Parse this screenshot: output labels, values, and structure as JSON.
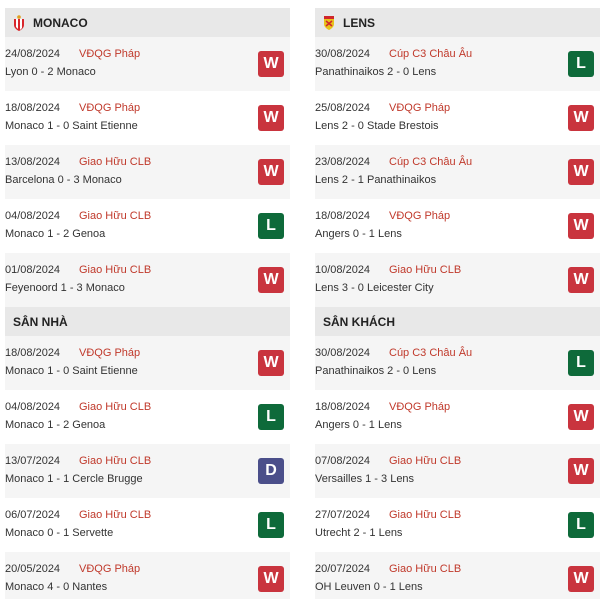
{
  "colors": {
    "W": "#c9343e",
    "L": "#0e6a3a",
    "D": "#4b4f8a",
    "competition": "#c0392b"
  },
  "left": [
    {
      "title": "MONACO",
      "icon": "monaco-crest-icon",
      "matches": [
        {
          "date": "24/08/2024",
          "comp": "VĐQG Pháp",
          "match": "Lyon 0 - 2 Monaco",
          "result": "W"
        },
        {
          "date": "18/08/2024",
          "comp": "VĐQG Pháp",
          "match": "Monaco 1 - 0 Saint Etienne",
          "result": "W"
        },
        {
          "date": "13/08/2024",
          "comp": "Giao Hữu CLB",
          "match": "Barcelona 0 - 3 Monaco",
          "result": "W"
        },
        {
          "date": "04/08/2024",
          "comp": "Giao Hữu CLB",
          "match": "Monaco 1 - 2 Genoa",
          "result": "L"
        },
        {
          "date": "01/08/2024",
          "comp": "Giao Hữu CLB",
          "match": "Feyenoord 1 - 3 Monaco",
          "result": "W"
        }
      ]
    },
    {
      "title": "SÂN NHÀ",
      "matches": [
        {
          "date": "18/08/2024",
          "comp": "VĐQG Pháp",
          "match": "Monaco 1 - 0 Saint Etienne",
          "result": "W"
        },
        {
          "date": "04/08/2024",
          "comp": "Giao Hữu CLB",
          "match": "Monaco 1 - 2 Genoa",
          "result": "L"
        },
        {
          "date": "13/07/2024",
          "comp": "Giao Hữu CLB",
          "match": "Monaco 1 - 1 Cercle Brugge",
          "result": "D"
        },
        {
          "date": "06/07/2024",
          "comp": "Giao Hữu CLB",
          "match": "Monaco 0 - 1 Servette",
          "result": "L"
        },
        {
          "date": "20/05/2024",
          "comp": "VĐQG Pháp",
          "match": "Monaco 4 - 0 Nantes",
          "result": "W"
        }
      ]
    }
  ],
  "right": [
    {
      "title": "LENS",
      "icon": "lens-crest-icon",
      "matches": [
        {
          "date": "30/08/2024",
          "comp": "Cúp C3 Châu Âu",
          "match": "Panathinaikos 2 - 0 Lens",
          "result": "L"
        },
        {
          "date": "25/08/2024",
          "comp": "VĐQG Pháp",
          "match": "Lens 2 - 0 Stade Brestois",
          "result": "W"
        },
        {
          "date": "23/08/2024",
          "comp": "Cúp C3 Châu Âu",
          "match": "Lens 2 - 1 Panathinaikos",
          "result": "W"
        },
        {
          "date": "18/08/2024",
          "comp": "VĐQG Pháp",
          "match": "Angers 0 - 1 Lens",
          "result": "W"
        },
        {
          "date": "10/08/2024",
          "comp": "Giao Hữu CLB",
          "match": "Lens 3 - 0 Leicester City",
          "result": "W"
        }
      ]
    },
    {
      "title": "SÂN KHÁCH",
      "matches": [
        {
          "date": "30/08/2024",
          "comp": "Cúp C3 Châu Âu",
          "match": "Panathinaikos 2 - 0 Lens",
          "result": "L"
        },
        {
          "date": "18/08/2024",
          "comp": "VĐQG Pháp",
          "match": "Angers 0 - 1 Lens",
          "result": "W"
        },
        {
          "date": "07/08/2024",
          "comp": "Giao Hữu CLB",
          "match": "Versailles 1 - 3 Lens",
          "result": "W"
        },
        {
          "date": "27/07/2024",
          "comp": "Giao Hữu CLB",
          "match": "Utrecht 2 - 1 Lens",
          "result": "L"
        },
        {
          "date": "20/07/2024",
          "comp": "Giao Hữu CLB",
          "match": "OH Leuven 0 - 1 Lens",
          "result": "W"
        }
      ]
    }
  ]
}
